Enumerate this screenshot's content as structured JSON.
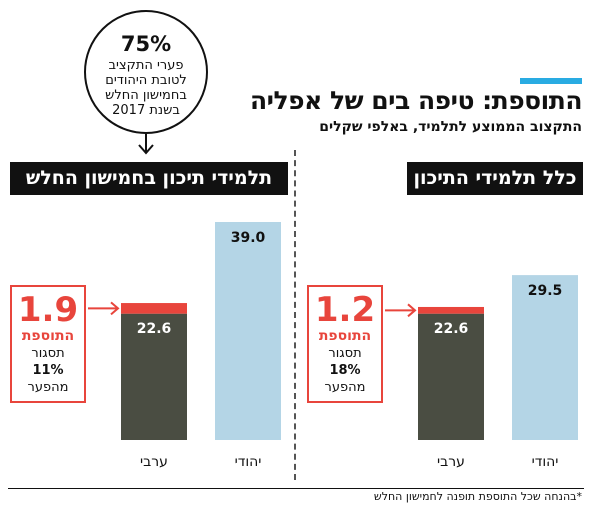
{
  "title": "התוספת: טיפה בים של אפליה",
  "subtitle": "התקצוב הממוצע לתלמיד, באלפי שקלים",
  "circle_note": {
    "percent": "75%",
    "text": "פערי התקציב לטובת היהודים בחמישון החלש בשנת 2017"
  },
  "footnote": "*בהנחה שכל התוספת תופנה לחמישון החלש",
  "colors": {
    "accent": "#29abe2",
    "jewish_bar": "#b4d5e6",
    "arab_bar": "#4a4d42",
    "addition": "#e8453c"
  },
  "chart_data": [
    {
      "type": "bar",
      "title": "תלמידי תיכון בחמישון החלש",
      "categories": [
        "יהודי",
        "ערבי"
      ],
      "values": [
        39.0,
        22.6
      ],
      "value_labels": [
        "39.0",
        "22.6"
      ],
      "addition": {
        "value": 1.9,
        "label": "1.9",
        "tag": "התוספת",
        "closes_text": "תסגור",
        "closes_pct": "11%",
        "of_gap": "מהפער"
      },
      "ylim": [
        0,
        39.0
      ]
    },
    {
      "type": "bar",
      "title": "כלל תלמידי התיכון",
      "categories": [
        "יהודי",
        "ערבי"
      ],
      "values": [
        29.5,
        22.6
      ],
      "value_labels": [
        "29.5",
        "22.6"
      ],
      "addition": {
        "value": 1.2,
        "label": "1.2",
        "tag": "התוספת",
        "closes_text": "תסגור",
        "closes_pct": "18%",
        "of_gap": "מהפער"
      },
      "ylim": [
        0,
        39.0
      ]
    }
  ]
}
